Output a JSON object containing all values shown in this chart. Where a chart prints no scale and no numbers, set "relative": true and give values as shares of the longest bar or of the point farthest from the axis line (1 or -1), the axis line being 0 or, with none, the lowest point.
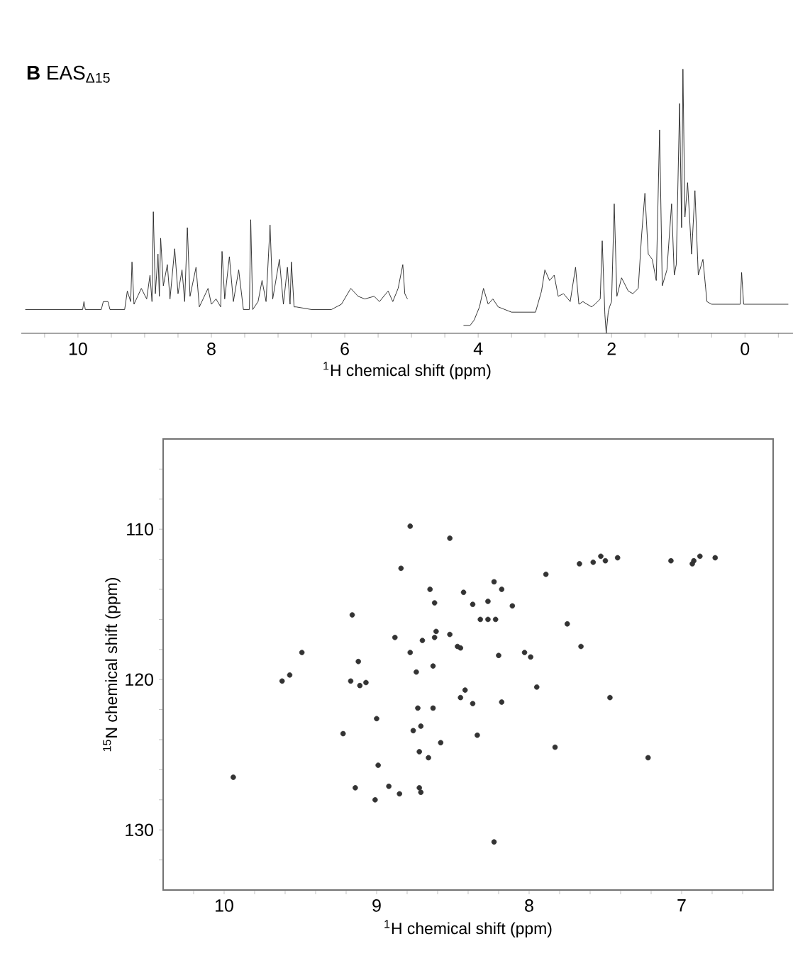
{
  "chart_data": [
    {
      "type": "line",
      "relative": true,
      "title": "**B** EAS$_{Δ15}$",
      "xlabel": "$^{1}$H chemical shift (ppm)",
      "color": "#222222",
      "xlim": [
        10.85,
        -0.72
      ],
      "xticks": [
        10,
        8,
        6,
        4,
        2,
        0,
        {
          "value": 10.5,
          "label": null
        },
        {
          "value": 9.5,
          "label": null
        },
        {
          "value": 9,
          "label": null
        },
        {
          "value": 8.5,
          "label": null
        },
        {
          "value": 7.5,
          "label": null
        },
        {
          "value": 7,
          "label": null
        },
        {
          "value": 6.5,
          "label": null
        },
        {
          "value": 5.5,
          "label": null
        },
        {
          "value": 5,
          "label": null
        },
        {
          "value": 4.5,
          "label": null
        },
        {
          "value": 3.5,
          "label": null
        },
        {
          "value": 3,
          "label": null
        },
        {
          "value": 2.5,
          "label": null
        },
        {
          "value": 1.5,
          "label": null
        },
        {
          "value": 1,
          "label": null
        },
        {
          "value": 0.5,
          "label": null
        },
        {
          "value": -0.5,
          "label": null
        }
      ],
      "x": [
        10.79,
        10.0,
        9.93,
        9.91,
        9.89,
        9.65,
        9.62,
        9.55,
        9.52,
        9.3,
        9.26,
        9.21,
        9.19,
        9.16,
        9.05,
        8.97,
        8.92,
        8.89,
        8.87,
        8.84,
        8.8,
        8.78,
        8.76,
        8.72,
        8.66,
        8.62,
        8.55,
        8.5,
        8.44,
        8.4,
        8.36,
        8.32,
        8.23,
        8.18,
        8.05,
        8.0,
        7.93,
        7.86,
        7.84,
        7.8,
        7.73,
        7.67,
        7.59,
        7.52,
        7.43,
        7.41,
        7.38,
        7.3,
        7.24,
        7.18,
        7.12,
        7.08,
        6.98,
        6.92,
        6.86,
        6.82,
        6.8,
        6.76,
        6.73,
        6.5,
        6.2,
        6.05,
        5.91,
        5.8,
        5.7,
        5.56,
        5.48,
        5.35,
        5.28,
        5.2,
        5.13,
        5.1,
        5.06,
        4.6,
        4.22,
        4.12,
        4.06,
        3.98,
        3.92,
        3.85,
        3.78,
        3.7,
        3.6,
        3.5,
        3.3,
        3.14,
        3.05,
        3.0,
        2.93,
        2.86,
        2.8,
        2.72,
        2.62,
        2.54,
        2.49,
        2.43,
        2.3,
        2.25,
        2.17,
        2.14,
        2.1,
        2.08,
        2.05,
        2.03,
        2.0,
        1.96,
        1.92,
        1.85,
        1.75,
        1.68,
        1.6,
        1.55,
        1.5,
        1.45,
        1.39,
        1.33,
        1.28,
        1.24,
        1.17,
        1.1,
        1.06,
        1.03,
        0.98,
        0.95,
        0.93,
        0.9,
        0.86,
        0.8,
        0.75,
        0.7,
        0.63,
        0.57,
        0.5,
        0.07,
        0.05,
        0.02,
        -0.65
      ],
      "values": [
        0.09,
        0.09,
        0.09,
        0.12,
        0.09,
        0.09,
        0.12,
        0.12,
        0.09,
        0.09,
        0.16,
        0.12,
        0.27,
        0.11,
        0.17,
        0.13,
        0.22,
        0.12,
        0.46,
        0.15,
        0.3,
        0.14,
        0.36,
        0.18,
        0.26,
        0.13,
        0.32,
        0.15,
        0.24,
        0.12,
        0.4,
        0.14,
        0.25,
        0.1,
        0.17,
        0.11,
        0.13,
        0.1,
        0.31,
        0.13,
        0.29,
        0.12,
        0.24,
        0.09,
        0.09,
        0.43,
        0.09,
        0.12,
        0.2,
        0.12,
        0.41,
        0.13,
        0.28,
        0.11,
        0.25,
        0.11,
        0.27,
        0.1,
        0.1,
        0.09,
        0.09,
        0.11,
        0.17,
        0.14,
        0.13,
        0.14,
        0.12,
        0.16,
        0.12,
        0.17,
        0.26,
        0.15,
        0.13,
        null,
        0.03,
        0.03,
        0.05,
        0.1,
        0.17,
        0.11,
        0.13,
        0.1,
        0.09,
        0.08,
        0.08,
        0.08,
        0.16,
        0.24,
        0.2,
        0.22,
        0.14,
        0.15,
        0.12,
        0.25,
        0.11,
        0.12,
        0.1,
        0.11,
        0.13,
        0.35,
        0.07,
        0.0,
        0.08,
        0.1,
        0.12,
        0.49,
        0.14,
        0.21,
        0.16,
        0.15,
        0.17,
        0.37,
        0.53,
        0.3,
        0.28,
        0.2,
        0.77,
        0.18,
        0.24,
        0.49,
        0.22,
        0.26,
        0.87,
        0.4,
        1.0,
        0.44,
        0.57,
        0.3,
        0.54,
        0.22,
        0.28,
        0.12,
        0.11,
        0.11,
        0.23,
        0.11,
        0.11
      ]
    },
    {
      "type": "scatter",
      "xlabel": "$^{1}$H chemical shift (ppm)",
      "ylabel": "$^{15}$N chemical shift (ppm)",
      "color": "#333333",
      "marker": "circle",
      "xlim": [
        10.4,
        6.4
      ],
      "ylim": [
        134,
        104
      ],
      "xticks": [
        10,
        9,
        8,
        7,
        {
          "value": 10.2,
          "label": null
        },
        {
          "value": 9.8,
          "label": null
        },
        {
          "value": 9.6,
          "label": null
        },
        {
          "value": 9.4,
          "label": null
        },
        {
          "value": 9.2,
          "label": null
        },
        {
          "value": 8.8,
          "label": null
        },
        {
          "value": 8.6,
          "label": null
        },
        {
          "value": 8.4,
          "label": null
        },
        {
          "value": 8.2,
          "label": null
        },
        {
          "value": 7.8,
          "label": null
        },
        {
          "value": 7.6,
          "label": null
        },
        {
          "value": 7.4,
          "label": null
        },
        {
          "value": 7.2,
          "label": null
        },
        {
          "value": 6.8,
          "label": null
        },
        {
          "value": 6.6,
          "label": null
        }
      ],
      "yticks": [
        110,
        120,
        130,
        {
          "value": 106,
          "label": null
        },
        {
          "value": 108,
          "label": null
        },
        {
          "value": 112,
          "label": null
        },
        {
          "value": 114,
          "label": null
        },
        {
          "value": 116,
          "label": null
        },
        {
          "value": 118,
          "label": null
        },
        {
          "value": 122,
          "label": null
        },
        {
          "value": 124,
          "label": null
        },
        {
          "value": 126,
          "label": null
        },
        {
          "value": 128,
          "label": null
        },
        {
          "value": 132,
          "label": null
        }
      ],
      "x": [
        8.78,
        8.52,
        8.84,
        7.89,
        7.67,
        7.58,
        7.53,
        7.5,
        7.42,
        7.07,
        6.93,
        6.92,
        6.88,
        6.78,
        8.65,
        8.62,
        8.43,
        8.37,
        8.27,
        8.23,
        8.18,
        8.11,
        8.32,
        8.27,
        8.22,
        9.16,
        8.88,
        8.7,
        8.62,
        8.61,
        8.52,
        8.47,
        8.45,
        7.75,
        7.66,
        8.2,
        8.03,
        7.99,
        9.49,
        9.62,
        9.57,
        9.12,
        9.17,
        9.11,
        9.07,
        8.74,
        8.63,
        7.95,
        8.42,
        8.45,
        8.37,
        8.18,
        7.47,
        8.73,
        8.63,
        9.0,
        9.22,
        8.76,
        8.71,
        8.58,
        8.34,
        7.83,
        7.22,
        8.72,
        8.66,
        8.99,
        9.94,
        9.14,
        8.92,
        8.85,
        8.72,
        8.71,
        9.01,
        8.23,
        8.78
      ],
      "values": [
        109.8,
        110.6,
        112.6,
        113.0,
        112.3,
        112.2,
        111.8,
        112.1,
        111.9,
        112.1,
        112.3,
        112.1,
        111.8,
        111.9,
        114.0,
        114.9,
        114.2,
        115.0,
        114.8,
        113.5,
        114.0,
        115.1,
        116.0,
        116.0,
        116.0,
        115.7,
        117.2,
        117.4,
        117.2,
        116.8,
        117.0,
        117.8,
        117.9,
        116.3,
        117.8,
        118.4,
        118.2,
        118.5,
        118.2,
        120.1,
        119.7,
        118.8,
        120.1,
        120.4,
        120.2,
        119.5,
        119.1,
        120.5,
        120.7,
        121.2,
        121.6,
        121.5,
        121.2,
        121.9,
        121.9,
        122.6,
        123.6,
        123.4,
        123.1,
        124.2,
        123.7,
        124.5,
        125.2,
        124.8,
        125.2,
        125.7,
        126.5,
        127.2,
        127.1,
        127.6,
        127.2,
        127.5,
        128.0,
        130.8,
        118.2
      ]
    }
  ]
}
